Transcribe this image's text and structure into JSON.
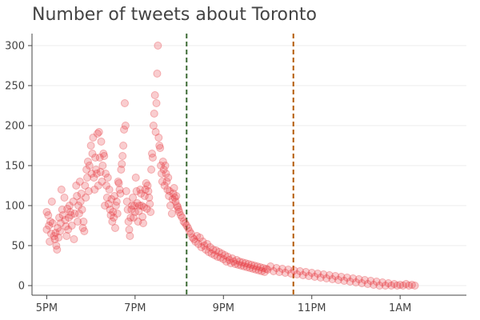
{
  "chart_data": {
    "type": "scatter",
    "title": "Number of tweets about Toronto",
    "xlabel": "",
    "ylabel": "",
    "x_unit": "time of day",
    "xlim": [
      "16:40",
      "26:30"
    ],
    "ylim": [
      -12,
      315
    ],
    "x_ticks": [
      "17:00",
      "19:00",
      "21:00",
      "23:00",
      "25:00"
    ],
    "x_tick_labels": [
      "5PM",
      "7PM",
      "9PM",
      "11PM",
      "1AM"
    ],
    "y_ticks": [
      0,
      50,
      100,
      150,
      200,
      250,
      300
    ],
    "y_tick_labels": [
      "0",
      "50",
      "100",
      "150",
      "200",
      "250",
      "300"
    ],
    "grid": "horizontal",
    "point_color": "#e6393f",
    "reference_lines": [
      {
        "x": "20:10",
        "color": "#3d6b35",
        "style": "dashed"
      },
      {
        "x": "22:35",
        "color": "#b35a00",
        "style": "dashed"
      }
    ],
    "series": [
      {
        "points": [
          [
            "17:00",
            92
          ],
          [
            "17:00",
            70
          ],
          [
            "17:02",
            88
          ],
          [
            "17:03",
            75
          ],
          [
            "17:04",
            55
          ],
          [
            "17:05",
            80
          ],
          [
            "17:06",
            65
          ],
          [
            "17:07",
            105
          ],
          [
            "17:08",
            78
          ],
          [
            "17:10",
            62
          ],
          [
            "17:11",
            58
          ],
          [
            "17:12",
            66
          ],
          [
            "17:13",
            50
          ],
          [
            "17:14",
            45
          ],
          [
            "17:15",
            72
          ],
          [
            "17:16",
            60
          ],
          [
            "17:17",
            85
          ],
          [
            "17:18",
            68
          ],
          [
            "17:19",
            78
          ],
          [
            "17:20",
            120
          ],
          [
            "17:21",
            95
          ],
          [
            "17:22",
            88
          ],
          [
            "17:24",
            110
          ],
          [
            "17:25",
            82
          ],
          [
            "17:26",
            74
          ],
          [
            "17:27",
            62
          ],
          [
            "17:28",
            96
          ],
          [
            "17:29",
            70
          ],
          [
            "17:30",
            85
          ],
          [
            "17:31",
            100
          ],
          [
            "17:32",
            92
          ],
          [
            "17:33",
            88
          ],
          [
            "17:34",
            75
          ],
          [
            "17:36",
            105
          ],
          [
            "17:37",
            58
          ],
          [
            "17:38",
            90
          ],
          [
            "17:40",
            125
          ],
          [
            "17:41",
            112
          ],
          [
            "17:42",
            80
          ],
          [
            "17:43",
            100
          ],
          [
            "17:44",
            90
          ],
          [
            "17:45",
            130
          ],
          [
            "17:46",
            105
          ],
          [
            "17:47",
            115
          ],
          [
            "17:48",
            95
          ],
          [
            "17:49",
            72
          ],
          [
            "17:50",
            80
          ],
          [
            "17:51",
            68
          ],
          [
            "17:52",
            125
          ],
          [
            "17:53",
            110
          ],
          [
            "17:54",
            145
          ],
          [
            "17:55",
            135
          ],
          [
            "17:56",
            155
          ],
          [
            "17:57",
            118
          ],
          [
            "17:58",
            150
          ],
          [
            "18:00",
            175
          ],
          [
            "18:01",
            140
          ],
          [
            "18:02",
            165
          ],
          [
            "18:03",
            185
          ],
          [
            "18:04",
            135
          ],
          [
            "18:05",
            120
          ],
          [
            "18:06",
            160
          ],
          [
            "18:07",
            145
          ],
          [
            "18:08",
            140
          ],
          [
            "18:09",
            190
          ],
          [
            "18:10",
            125
          ],
          [
            "18:11",
            192
          ],
          [
            "18:12",
            160
          ],
          [
            "18:13",
            142
          ],
          [
            "18:14",
            180
          ],
          [
            "18:15",
            130
          ],
          [
            "18:16",
            150
          ],
          [
            "18:17",
            165
          ],
          [
            "18:18",
            162
          ],
          [
            "18:19",
            100
          ],
          [
            "18:20",
            140
          ],
          [
            "18:21",
            125
          ],
          [
            "18:22",
            110
          ],
          [
            "18:23",
            135
          ],
          [
            "18:24",
            102
          ],
          [
            "18:25",
            120
          ],
          [
            "18:26",
            95
          ],
          [
            "18:27",
            88
          ],
          [
            "18:28",
            108
          ],
          [
            "18:29",
            80
          ],
          [
            "18:30",
            92
          ],
          [
            "18:31",
            85
          ],
          [
            "18:32",
            112
          ],
          [
            "18:33",
            72
          ],
          [
            "18:34",
            100
          ],
          [
            "18:35",
            105
          ],
          [
            "18:36",
            90
          ],
          [
            "18:37",
            130
          ],
          [
            "18:38",
            128
          ],
          [
            "18:39",
            120
          ],
          [
            "18:40",
            115
          ],
          [
            "18:41",
            145
          ],
          [
            "18:42",
            152
          ],
          [
            "18:43",
            162
          ],
          [
            "18:44",
            175
          ],
          [
            "18:45",
            195
          ],
          [
            "18:46",
            228
          ],
          [
            "18:47",
            200
          ],
          [
            "18:48",
            118
          ],
          [
            "18:49",
            105
          ],
          [
            "18:50",
            95
          ],
          [
            "18:51",
            80
          ],
          [
            "18:52",
            70
          ],
          [
            "18:53",
            62
          ],
          [
            "18:54",
            85
          ],
          [
            "18:55",
            95
          ],
          [
            "18:56",
            100
          ],
          [
            "18:57",
            110
          ],
          [
            "18:58",
            85
          ],
          [
            "18:59",
            100
          ],
          [
            "19:00",
            92
          ],
          [
            "19:01",
            135
          ],
          [
            "19:02",
            118
          ],
          [
            "19:03",
            103
          ],
          [
            "19:04",
            80
          ],
          [
            "19:05",
            93
          ],
          [
            "19:06",
            100
          ],
          [
            "19:07",
            120
          ],
          [
            "19:08",
            115
          ],
          [
            "19:09",
            100
          ],
          [
            "19:10",
            86
          ],
          [
            "19:11",
            78
          ],
          [
            "19:12",
            98
          ],
          [
            "19:13",
            112
          ],
          [
            "19:14",
            120
          ],
          [
            "19:15",
            128
          ],
          [
            "19:16",
            96
          ],
          [
            "19:17",
            125
          ],
          [
            "19:18",
            118
          ],
          [
            "19:19",
            110
          ],
          [
            "19:20",
            102
          ],
          [
            "19:21",
            92
          ],
          [
            "19:22",
            145
          ],
          [
            "19:23",
            165
          ],
          [
            "19:24",
            160
          ],
          [
            "19:25",
            200
          ],
          [
            "19:26",
            215
          ],
          [
            "19:27",
            238
          ],
          [
            "19:28",
            192
          ],
          [
            "19:29",
            228
          ],
          [
            "19:30",
            265
          ],
          [
            "19:31",
            300
          ],
          [
            "19:32",
            185
          ],
          [
            "19:33",
            175
          ],
          [
            "19:34",
            172
          ],
          [
            "19:35",
            150
          ],
          [
            "19:36",
            140
          ],
          [
            "19:37",
            130
          ],
          [
            "19:38",
            155
          ],
          [
            "19:39",
            145
          ],
          [
            "19:40",
            125
          ],
          [
            "19:41",
            150
          ],
          [
            "19:42",
            140
          ],
          [
            "19:43",
            130
          ],
          [
            "19:44",
            120
          ],
          [
            "19:45",
            135
          ],
          [
            "19:46",
            112
          ],
          [
            "19:47",
            118
          ],
          [
            "19:48",
            100
          ],
          [
            "19:50",
            90
          ],
          [
            "19:51",
            108
          ],
          [
            "19:52",
            115
          ],
          [
            "19:53",
            122
          ],
          [
            "19:54",
            110
          ],
          [
            "19:55",
            105
          ],
          [
            "19:56",
            112
          ],
          [
            "19:57",
            100
          ],
          [
            "19:58",
            98
          ],
          [
            "19:59",
            95
          ],
          [
            "20:00",
            92
          ],
          [
            "20:02",
            88
          ],
          [
            "20:04",
            85
          ],
          [
            "20:06",
            80
          ],
          [
            "20:08",
            78
          ],
          [
            "20:10",
            75
          ],
          [
            "20:12",
            72
          ],
          [
            "20:14",
            68
          ],
          [
            "20:16",
            65
          ],
          [
            "20:18",
            60
          ],
          [
            "20:20",
            58
          ],
          [
            "20:22",
            55
          ],
          [
            "20:24",
            62
          ],
          [
            "20:26",
            52
          ],
          [
            "20:28",
            60
          ],
          [
            "20:30",
            48
          ],
          [
            "20:32",
            55
          ],
          [
            "20:34",
            50
          ],
          [
            "20:36",
            45
          ],
          [
            "20:38",
            52
          ],
          [
            "20:40",
            42
          ],
          [
            "20:42",
            48
          ],
          [
            "20:44",
            40
          ],
          [
            "20:46",
            45
          ],
          [
            "20:48",
            38
          ],
          [
            "20:50",
            44
          ],
          [
            "20:52",
            36
          ],
          [
            "20:54",
            42
          ],
          [
            "20:56",
            35
          ],
          [
            "20:58",
            40
          ],
          [
            "21:00",
            33
          ],
          [
            "21:02",
            38
          ],
          [
            "21:04",
            30
          ],
          [
            "21:06",
            36
          ],
          [
            "21:08",
            32
          ],
          [
            "21:10",
            28
          ],
          [
            "21:12",
            34
          ],
          [
            "21:14",
            30
          ],
          [
            "21:16",
            27
          ],
          [
            "21:18",
            32
          ],
          [
            "21:20",
            26
          ],
          [
            "21:22",
            30
          ],
          [
            "21:24",
            25
          ],
          [
            "21:26",
            29
          ],
          [
            "21:28",
            24
          ],
          [
            "21:30",
            28
          ],
          [
            "21:32",
            23
          ],
          [
            "21:34",
            27
          ],
          [
            "21:36",
            22
          ],
          [
            "21:38",
            26
          ],
          [
            "21:40",
            21
          ],
          [
            "21:42",
            25
          ],
          [
            "21:44",
            20
          ],
          [
            "21:46",
            24
          ],
          [
            "21:48",
            19
          ],
          [
            "21:50",
            23
          ],
          [
            "21:52",
            18
          ],
          [
            "21:54",
            22
          ],
          [
            "21:56",
            17
          ],
          [
            "21:58",
            21
          ],
          [
            "22:00",
            20
          ],
          [
            "22:04",
            24
          ],
          [
            "22:08",
            18
          ],
          [
            "22:12",
            22
          ],
          [
            "22:16",
            17
          ],
          [
            "22:20",
            21
          ],
          [
            "22:24",
            16
          ],
          [
            "22:28",
            20
          ],
          [
            "22:32",
            15
          ],
          [
            "22:36",
            19
          ],
          [
            "22:40",
            14
          ],
          [
            "22:44",
            18
          ],
          [
            "22:48",
            13
          ],
          [
            "22:52",
            17
          ],
          [
            "22:56",
            12
          ],
          [
            "23:00",
            16
          ],
          [
            "23:04",
            11
          ],
          [
            "23:08",
            15
          ],
          [
            "23:12",
            10
          ],
          [
            "23:16",
            14
          ],
          [
            "23:20",
            9
          ],
          [
            "23:24",
            13
          ],
          [
            "23:28",
            8
          ],
          [
            "23:32",
            12
          ],
          [
            "23:36",
            7
          ],
          [
            "23:40",
            11
          ],
          [
            "23:44",
            6
          ],
          [
            "23:48",
            10
          ],
          [
            "23:52",
            5
          ],
          [
            "23:56",
            9
          ],
          [
            "24:00",
            4
          ],
          [
            "24:04",
            8
          ],
          [
            "24:08",
            3
          ],
          [
            "24:12",
            7
          ],
          [
            "24:16",
            2
          ],
          [
            "24:20",
            6
          ],
          [
            "24:24",
            1
          ],
          [
            "24:28",
            5
          ],
          [
            "24:32",
            0
          ],
          [
            "24:36",
            4
          ],
          [
            "24:40",
            0
          ],
          [
            "24:44",
            3
          ],
          [
            "24:48",
            0
          ],
          [
            "24:52",
            2
          ],
          [
            "24:56",
            0
          ],
          [
            "25:00",
            1
          ],
          [
            "25:04",
            0
          ],
          [
            "25:08",
            2
          ],
          [
            "25:12",
            0
          ],
          [
            "25:16",
            1
          ],
          [
            "25:20",
            0
          ]
        ]
      }
    ]
  }
}
